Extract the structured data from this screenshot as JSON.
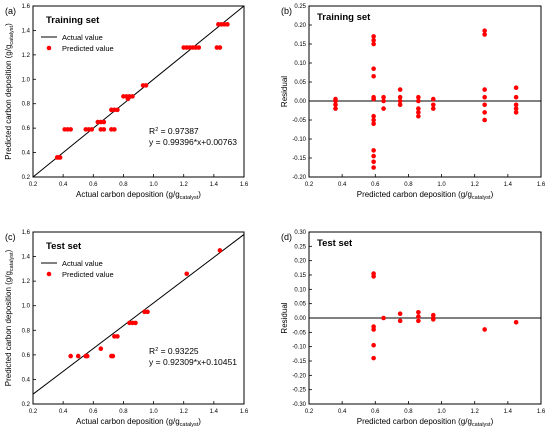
{
  "colors": {
    "point": "#ff0000",
    "line": "#000000"
  },
  "chart_data": [
    {
      "panel": "(a)",
      "type": "scatter",
      "title": "Training set",
      "xlabel": "Actual carbon deposition (g/g",
      "xlabel_sub": "catalyst",
      "xlabel_end": ")",
      "ylabel": "Predicted carbon deposition (g/g",
      "ylabel_sub": "catalyst",
      "ylabel_end": ")",
      "xlim": [
        0.2,
        1.6
      ],
      "ylim": [
        0.2,
        1.6
      ],
      "xticks": [
        "0.2",
        "0.4",
        "0.6",
        "0.8",
        "1.0",
        "1.2",
        "1.4",
        "1.6"
      ],
      "yticks": [
        "0.2",
        "0.4",
        "0.6",
        "0.8",
        "1.0",
        "1.2",
        "1.4",
        "1.6"
      ],
      "xtick_values": [
        0.2,
        0.4,
        0.6,
        0.8,
        1.0,
        1.2,
        1.4,
        1.6
      ],
      "ytick_values": [
        0.2,
        0.4,
        0.6,
        0.8,
        1.0,
        1.2,
        1.4,
        1.6
      ],
      "legend": [
        "Actual value",
        "Predicted value"
      ],
      "annotation_r2": "R",
      "annotation_r2_sup": "2",
      "annotation_r2_val": " = 0.97387",
      "annotation_eq": "y = 0.99396*x+0.00763",
      "reference_line": [
        [
          0.2,
          0.2
        ],
        [
          1.6,
          1.6
        ]
      ],
      "points": [
        [
          0.36,
          0.36
        ],
        [
          0.37,
          0.36
        ],
        [
          0.38,
          0.36
        ],
        [
          0.41,
          0.59
        ],
        [
          0.43,
          0.59
        ],
        [
          0.45,
          0.59
        ],
        [
          0.55,
          0.59
        ],
        [
          0.57,
          0.59
        ],
        [
          0.59,
          0.59
        ],
        [
          0.63,
          0.65
        ],
        [
          0.65,
          0.65
        ],
        [
          0.67,
          0.65
        ],
        [
          0.65,
          0.59
        ],
        [
          0.67,
          0.59
        ],
        [
          0.72,
          0.59
        ],
        [
          0.74,
          0.59
        ],
        [
          0.72,
          0.75
        ],
        [
          0.74,
          0.75
        ],
        [
          0.76,
          0.75
        ],
        [
          0.8,
          0.86
        ],
        [
          0.82,
          0.86
        ],
        [
          0.84,
          0.86
        ],
        [
          0.86,
          0.86
        ],
        [
          0.83,
          0.84
        ],
        [
          0.93,
          0.95
        ],
        [
          0.95,
          0.95
        ],
        [
          1.2,
          1.26
        ],
        [
          1.22,
          1.26
        ],
        [
          1.24,
          1.26
        ],
        [
          1.26,
          1.26
        ],
        [
          1.28,
          1.26
        ],
        [
          1.3,
          1.26
        ],
        [
          1.42,
          1.26
        ],
        [
          1.44,
          1.26
        ],
        [
          1.43,
          1.45
        ],
        [
          1.45,
          1.45
        ],
        [
          1.47,
          1.45
        ],
        [
          1.49,
          1.45
        ]
      ]
    },
    {
      "panel": "(b)",
      "type": "scatter",
      "title": "Training set",
      "xlabel": "Predicted carbon deposition (g/g",
      "xlabel_sub": "catalyst",
      "xlabel_end": ")",
      "ylabel": "Residual",
      "xlim": [
        0.2,
        1.6
      ],
      "ylim": [
        -0.2,
        0.25
      ],
      "xticks": [
        "0.2",
        "0.4",
        "0.6",
        "0.8",
        "1.0",
        "1.2",
        "1.4",
        "1.6"
      ],
      "xtick_values": [
        0.2,
        0.4,
        0.6,
        0.8,
        1.0,
        1.2,
        1.4,
        1.6
      ],
      "yticks": [
        "-0.20",
        "-0.15",
        "-0.10",
        "-0.05",
        "0.00",
        "0.05",
        "0.10",
        "0.15",
        "0.20",
        "0.25"
      ],
      "ytick_values": [
        -0.2,
        -0.15,
        -0.1,
        -0.05,
        0,
        0.05,
        0.1,
        0.15,
        0.2,
        0.25
      ],
      "reference_line": [
        [
          0.2,
          0
        ],
        [
          1.6,
          0
        ]
      ],
      "points": [
        [
          0.36,
          0.0
        ],
        [
          0.36,
          -0.01
        ],
        [
          0.36,
          -0.02
        ],
        [
          0.36,
          0.005
        ],
        [
          0.59,
          0.17
        ],
        [
          0.59,
          0.16
        ],
        [
          0.59,
          0.15
        ],
        [
          0.59,
          0.085
        ],
        [
          0.59,
          0.065
        ],
        [
          0.59,
          0.01
        ],
        [
          0.59,
          0.005
        ],
        [
          0.59,
          -0.04
        ],
        [
          0.59,
          -0.05
        ],
        [
          0.59,
          -0.06
        ],
        [
          0.59,
          -0.13
        ],
        [
          0.59,
          -0.145
        ],
        [
          0.59,
          -0.16
        ],
        [
          0.59,
          -0.175
        ],
        [
          0.65,
          0.0
        ],
        [
          0.65,
          0.01
        ],
        [
          0.65,
          -0.02
        ],
        [
          0.75,
          0.03
        ],
        [
          0.75,
          0.01
        ],
        [
          0.75,
          0.0
        ],
        [
          0.75,
          -0.01
        ],
        [
          0.86,
          0.01
        ],
        [
          0.86,
          0.0
        ],
        [
          0.86,
          -0.02
        ],
        [
          0.86,
          -0.03
        ],
        [
          0.86,
          -0.04
        ],
        [
          0.95,
          0.005
        ],
        [
          0.95,
          -0.01
        ],
        [
          0.95,
          -0.02
        ],
        [
          1.26,
          0.185
        ],
        [
          1.26,
          0.175
        ],
        [
          1.26,
          0.03
        ],
        [
          1.26,
          0.01
        ],
        [
          1.26,
          -0.01
        ],
        [
          1.26,
          -0.03
        ],
        [
          1.26,
          -0.05
        ],
        [
          1.45,
          0.035
        ],
        [
          1.45,
          0.01
        ],
        [
          1.45,
          -0.01
        ],
        [
          1.45,
          -0.02
        ],
        [
          1.45,
          -0.03
        ]
      ]
    },
    {
      "panel": "(c)",
      "type": "scatter",
      "title": "Test set",
      "xlabel": "Actual carbon deposition (g/g",
      "xlabel_sub": "catalyst",
      "xlabel_end": ")",
      "ylabel": "Predicted carbon deposition (g/g",
      "ylabel_sub": "catalyst",
      "ylabel_end": ")",
      "xlim": [
        0.2,
        1.6
      ],
      "ylim": [
        0.2,
        1.6
      ],
      "xticks": [
        "0.2",
        "0.4",
        "0.6",
        "0.8",
        "1.0",
        "1.2",
        "1.4",
        "1.6"
      ],
      "yticks": [
        "0.2",
        "0.4",
        "0.6",
        "0.8",
        "1.0",
        "1.2",
        "1.4",
        "1.6"
      ],
      "xtick_values": [
        0.2,
        0.4,
        0.6,
        0.8,
        1.0,
        1.2,
        1.4,
        1.6
      ],
      "ytick_values": [
        0.2,
        0.4,
        0.6,
        0.8,
        1.0,
        1.2,
        1.4,
        1.6
      ],
      "legend": [
        "Actual value",
        "Predicted value"
      ],
      "annotation_r2": "R",
      "annotation_r2_sup": "2",
      "annotation_r2_val": " = 0.93225",
      "annotation_eq": "y = 0.92309*x+0.10451",
      "reference_line": [
        [
          0.2,
          0.28
        ],
        [
          1.6,
          1.58
        ]
      ],
      "points": [
        [
          0.45,
          0.59
        ],
        [
          0.5,
          0.59
        ],
        [
          0.55,
          0.59
        ],
        [
          0.56,
          0.59
        ],
        [
          0.65,
          0.65
        ],
        [
          0.72,
          0.59
        ],
        [
          0.73,
          0.59
        ],
        [
          0.74,
          0.75
        ],
        [
          0.76,
          0.75
        ],
        [
          0.84,
          0.86
        ],
        [
          0.86,
          0.86
        ],
        [
          0.88,
          0.86
        ],
        [
          0.94,
          0.95
        ],
        [
          0.96,
          0.95
        ],
        [
          1.22,
          1.26
        ],
        [
          1.44,
          1.45
        ]
      ]
    },
    {
      "panel": "(d)",
      "type": "scatter",
      "title": "Test set",
      "xlabel": "Predicted carbon deposition (g/g",
      "xlabel_sub": "catalyst",
      "xlabel_end": ")",
      "ylabel": "Residual",
      "xlim": [
        0.2,
        1.6
      ],
      "ylim": [
        -0.3,
        0.3
      ],
      "xticks": [
        "0.2",
        "0.4",
        "0.6",
        "0.8",
        "1.0",
        "1.2",
        "1.4",
        "1.6"
      ],
      "xtick_values": [
        0.2,
        0.4,
        0.6,
        0.8,
        1.0,
        1.2,
        1.4,
        1.6
      ],
      "yticks": [
        "-0.30",
        "-0.25",
        "-0.20",
        "-0.15",
        "-0.10",
        "-0.05",
        "0.00",
        "0.05",
        "0.10",
        "0.15",
        "0.20",
        "0.25",
        "0.30"
      ],
      "ytick_values": [
        -0.3,
        -0.25,
        -0.2,
        -0.15,
        -0.1,
        -0.05,
        0,
        0.05,
        0.1,
        0.15,
        0.2,
        0.25,
        0.3
      ],
      "reference_line": [
        [
          0.2,
          0
        ],
        [
          1.6,
          0
        ]
      ],
      "points": [
        [
          0.59,
          0.155
        ],
        [
          0.59,
          0.145
        ],
        [
          0.59,
          -0.03
        ],
        [
          0.59,
          -0.04
        ],
        [
          0.59,
          -0.095
        ],
        [
          0.59,
          -0.14
        ],
        [
          0.65,
          0.0
        ],
        [
          0.75,
          0.015
        ],
        [
          0.75,
          -0.01
        ],
        [
          0.86,
          0.02
        ],
        [
          0.86,
          0.005
        ],
        [
          0.86,
          -0.01
        ],
        [
          0.95,
          0.01
        ],
        [
          0.95,
          0.0
        ],
        [
          0.95,
          -0.005
        ],
        [
          1.26,
          -0.04
        ],
        [
          1.45,
          -0.015
        ]
      ]
    }
  ]
}
